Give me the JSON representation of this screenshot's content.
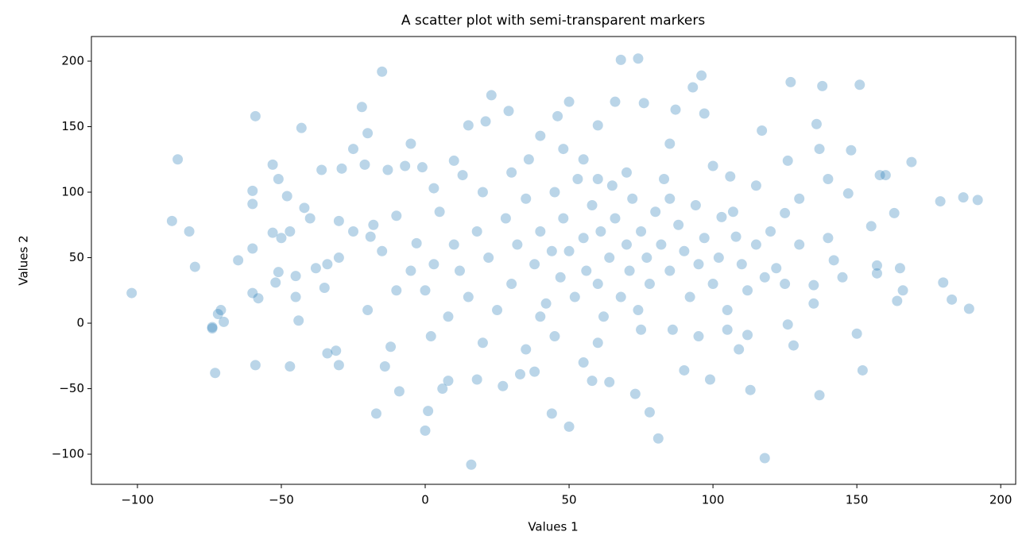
{
  "chart_data": {
    "type": "scatter",
    "title": "A scatter plot with semi-transparent markers",
    "x_label": "Values 1",
    "y_label": "Values 2",
    "color": "#1f77b4",
    "alpha": 0.3,
    "xlim": [
      -116,
      205.2
    ],
    "ylim": [
      -123,
      218.8
    ],
    "xticks": [
      {
        "value": -100,
        "label": "−100"
      },
      {
        "value": -50,
        "label": "−50"
      },
      0,
      50,
      100,
      150,
      200
    ],
    "yticks": [
      {
        "value": -100,
        "label": "−100"
      },
      {
        "value": -50,
        "label": "−50"
      },
      0,
      50,
      100,
      150,
      200
    ],
    "x": [
      -102,
      -88,
      -86,
      -82,
      -80,
      -74,
      -74,
      -72,
      -71,
      -70,
      -73,
      -65,
      -60,
      -60,
      -59,
      -60,
      -58,
      -59,
      -60,
      -53,
      -53,
      -51,
      -52,
      -51,
      -50,
      -48,
      -47,
      -47,
      -45,
      -44,
      -43,
      -42,
      -38,
      -36,
      -35,
      -34,
      -34,
      -31,
      -30,
      -30,
      -29,
      -25,
      -22,
      -21,
      -20,
      -19,
      -18,
      -17,
      -15,
      -14,
      -13,
      -12,
      -10,
      -9,
      -7,
      -5,
      -3,
      -1,
      0,
      1,
      3,
      6,
      8,
      10,
      13,
      15,
      16,
      18,
      21,
      23,
      27,
      29,
      33,
      36,
      38,
      40,
      44,
      46,
      48,
      50,
      50,
      55,
      58,
      60,
      64,
      66,
      68,
      74,
      73,
      76,
      78,
      81,
      85,
      87,
      90,
      93,
      96,
      97,
      99,
      106,
      109,
      112,
      113,
      117,
      118,
      126,
      127,
      136,
      137,
      137,
      138,
      148,
      150,
      151,
      152,
      158,
      160,
      163,
      164,
      165,
      166,
      169,
      179,
      180,
      183,
      187,
      189,
      192,
      155,
      157,
      157,
      147,
      140,
      142,
      135,
      130,
      128,
      126,
      122,
      125,
      108,
      103,
      100,
      5,
      10,
      12,
      15,
      18,
      20,
      22,
      25,
      28,
      30,
      32,
      35,
      38,
      40,
      42,
      44,
      45,
      47,
      48,
      50,
      52,
      53,
      55,
      56,
      58,
      60,
      61,
      62,
      64,
      65,
      66,
      68,
      70,
      71,
      72,
      74,
      75,
      77,
      78,
      80,
      82,
      83,
      85,
      86,
      88,
      90,
      92,
      94,
      95,
      97,
      100,
      102,
      105,
      107,
      110,
      112,
      115,
      118,
      120,
      0,
      3,
      8,
      -5,
      -10,
      -15,
      -20,
      -25,
      -30,
      2,
      20,
      35,
      45,
      60,
      75,
      95,
      40,
      55,
      70,
      30,
      85,
      60,
      -40,
      -45,
      130,
      135,
      140,
      145,
      125,
      115,
      105
    ],
    "values": [
      23,
      78,
      125,
      70,
      43,
      -3,
      -4,
      7,
      10,
      1,
      -38,
      48,
      101,
      91,
      158,
      23,
      19,
      -32,
      57,
      121,
      69,
      110,
      31,
      39,
      65,
      97,
      70,
      -33,
      36,
      2,
      149,
      88,
      42,
      117,
      27,
      45,
      -23,
      -21,
      -32,
      78,
      118,
      133,
      165,
      121,
      145,
      66,
      75,
      -69,
      192,
      -33,
      117,
      -18,
      82,
      -52,
      120,
      137,
      61,
      119,
      -82,
      -67,
      103,
      -50,
      -44,
      124,
      113,
      151,
      -108,
      -43,
      154,
      174,
      -48,
      162,
      -39,
      125,
      -37,
      143,
      -69,
      158,
      133,
      -79,
      169,
      125,
      -44,
      151,
      -45,
      169,
      201,
      202,
      -54,
      168,
      -68,
      -88,
      137,
      163,
      -36,
      180,
      189,
      160,
      -43,
      112,
      -20,
      -9,
      -51,
      147,
      -103,
      124,
      184,
      152,
      133,
      -55,
      181,
      132,
      -8,
      182,
      -36,
      113,
      113,
      84,
      17,
      42,
      25,
      123,
      93,
      31,
      18,
      96,
      11,
      94,
      74,
      44,
      38,
      99,
      110,
      48,
      29,
      95,
      -17,
      -1,
      42,
      84,
      66,
      81,
      120,
      85,
      60,
      40,
      20,
      70,
      100,
      50,
      10,
      80,
      30,
      60,
      95,
      45,
      70,
      15,
      55,
      100,
      35,
      80,
      55,
      20,
      110,
      65,
      40,
      90,
      30,
      70,
      5,
      50,
      105,
      80,
      20,
      60,
      40,
      95,
      10,
      70,
      50,
      30,
      85,
      60,
      110,
      40,
      -5,
      75,
      55,
      20,
      90,
      45,
      65,
      30,
      50,
      10,
      85,
      45,
      25,
      60,
      35,
      70,
      25,
      45,
      5,
      40,
      25,
      55,
      10,
      70,
      50,
      -10,
      -15,
      -20,
      -10,
      -15,
      -5,
      -10,
      5,
      -30,
      115,
      115,
      95,
      110,
      80,
      20,
      60,
      15,
      65,
      35,
      30,
      105,
      -5
    ]
  }
}
